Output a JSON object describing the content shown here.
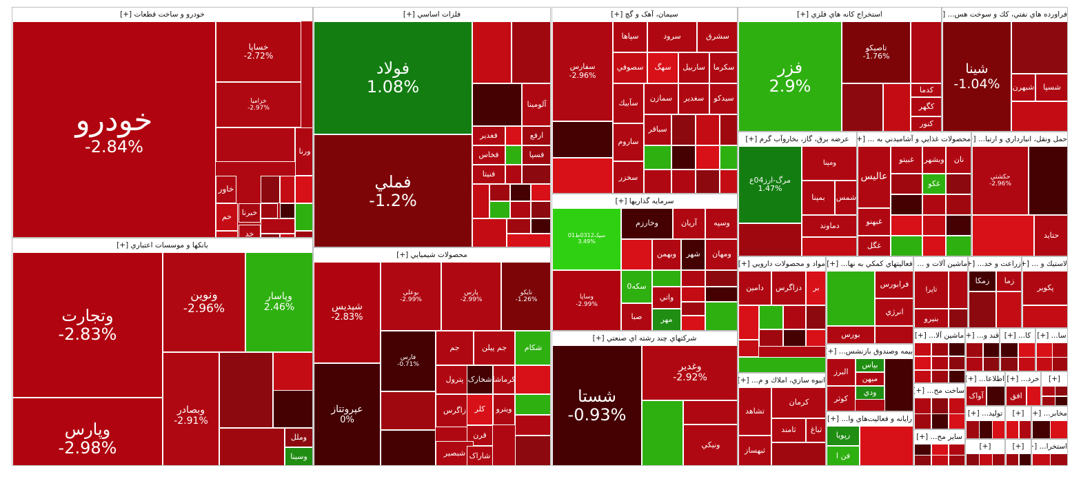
{
  "sectors": [
    {
      "id": "auto",
      "title": "خودرو و ساخت قطعات [+]",
      "tiles": [
        {
          "symbol": "خودرو",
          "change": "-2.84%",
          "color": "#b00510"
        },
        {
          "symbol": "خساپا",
          "change": "-2.72%",
          "color": "#ae0710"
        },
        {
          "symbol": "خزامیا",
          "change": "-2.97%",
          "color": "#b00812"
        },
        {
          "symbol": "ورنا",
          "change": "",
          "color": "#b00812"
        },
        {
          "symbol": "خاور",
          "change": "",
          "color": "#b00812"
        },
        {
          "symbol": "خبرنا",
          "change": "",
          "color": "#a80810"
        },
        {
          "symbol": "خم",
          "change": "",
          "color": "#c40c14"
        },
        {
          "symbol": "خم",
          "change": "",
          "color": "#c40c14"
        },
        {
          "symbol": "خد",
          "change": "",
          "color": "#b00812"
        }
      ]
    },
    {
      "id": "banks",
      "title": "بانکها و موسسات اعتباري [+]",
      "tiles": [
        {
          "symbol": "وتجارت",
          "change": "-2.83%",
          "color": "#b00510"
        },
        {
          "symbol": "وپارس",
          "change": "-2.98%",
          "color": "#b00510"
        },
        {
          "symbol": "ونوين",
          "change": "-2.96%",
          "color": "#b00812"
        },
        {
          "symbol": "وپاسار",
          "change": "2.46%",
          "color": "#2fb011"
        },
        {
          "symbol": "وبصادر",
          "change": "-2.91%",
          "color": "#b00812"
        },
        {
          "symbol": "وملل",
          "change": "",
          "color": "#8c0a0f"
        },
        {
          "symbol": "وسينا",
          "change": "",
          "color": "#1f8e12"
        }
      ]
    },
    {
      "id": "metals",
      "title": "فلزات اساسي [+]",
      "tiles": [
        {
          "symbol": "فولاد",
          "change": "1.08%",
          "color": "#137d12"
        },
        {
          "symbol": "فملي",
          "change": "-1.2%",
          "color": "#7d0508"
        },
        {
          "symbol": "آلومينا",
          "change": "",
          "color": "#b00812"
        },
        {
          "symbol": "فغدير",
          "change": "",
          "color": "#b00812"
        },
        {
          "symbol": "ارفع",
          "change": "",
          "color": "#a00810"
        },
        {
          "symbol": "فخاس",
          "change": "",
          "color": "#b00812"
        },
        {
          "symbol": "فسپا",
          "change": "",
          "color": "#a00810"
        },
        {
          "symbol": "فنيتا",
          "change": "",
          "color": "#b00812"
        }
      ]
    },
    {
      "id": "chem",
      "title": "محصولات شيميايي [+]",
      "tiles": [
        {
          "symbol": "شپديس",
          "change": "-2.83%",
          "color": "#b00510"
        },
        {
          "symbol": "بوعلي",
          "change": "-2.99%",
          "color": "#b00812"
        },
        {
          "symbol": "پارس",
          "change": "-2.99%",
          "color": "#b00812"
        },
        {
          "symbol": "نايکو",
          "change": "-1.26%",
          "color": "#7d0508"
        },
        {
          "symbol": "عپروتتاز",
          "change": "0%",
          "color": "#450002"
        },
        {
          "symbol": "فارس",
          "change": "-0.71%",
          "color": "#450002"
        },
        {
          "symbol": "جم",
          "change": "",
          "color": "#b00812"
        },
        {
          "symbol": "جم پيلن",
          "change": "",
          "color": "#b00812"
        },
        {
          "symbol": "شکام",
          "change": "",
          "color": "#2fb011"
        },
        {
          "symbol": "پترول",
          "change": "",
          "color": "#b00812"
        },
        {
          "symbol": "شخارک",
          "change": "",
          "color": "#450002"
        },
        {
          "symbol": "کرماشا",
          "change": "",
          "color": "#b00812"
        },
        {
          "symbol": "زاگرس",
          "change": "",
          "color": "#b00812"
        },
        {
          "symbol": "کلر",
          "change": "",
          "color": "#d81018"
        },
        {
          "symbol": "ويترو",
          "change": "",
          "color": "#b00812"
        },
        {
          "symbol": "قرن",
          "change": "",
          "color": "#b00812"
        },
        {
          "symbol": "شبصير",
          "change": "",
          "color": "#b00812"
        },
        {
          "symbol": "شاراک",
          "change": "",
          "color": "#b00812"
        }
      ]
    },
    {
      "id": "cement",
      "title": "سيمان، آهک و گچ [+]",
      "tiles": [
        {
          "symbol": "سفارس",
          "change": "-2.96%",
          "color": "#b00812"
        },
        {
          "symbol": "سپاها",
          "change": "",
          "color": "#b00812"
        },
        {
          "symbol": "سرود",
          "change": "",
          "color": "#b00812"
        },
        {
          "symbol": "سشرق",
          "change": "",
          "color": "#b00812"
        },
        {
          "symbol": "سهگ",
          "change": "",
          "color": "#d81018"
        },
        {
          "symbol": "ساربيل",
          "change": "",
          "color": "#b00812"
        },
        {
          "symbol": "سكرما",
          "change": "",
          "color": "#b00812"
        },
        {
          "symbol": "سصوفي",
          "change": "",
          "color": "#c40c14"
        },
        {
          "symbol": "سآبيك",
          "change": "",
          "color": "#b00812"
        },
        {
          "symbol": "سمازن",
          "change": "",
          "color": "#b00812"
        },
        {
          "symbol": "سغدير",
          "change": "",
          "color": "#b00812"
        },
        {
          "symbol": "سيدكو",
          "change": "",
          "color": "#b00812"
        },
        {
          "symbol": "ساروم",
          "change": "",
          "color": "#b00812"
        },
        {
          "symbol": "سباقر",
          "change": "",
          "color": "#b00812"
        },
        {
          "symbol": "سخزر",
          "change": "",
          "color": "#b00812"
        }
      ]
    },
    {
      "id": "invest",
      "title": "سرمايه گذاريها [+]",
      "tiles": [
        {
          "symbol": "سپک0312ط01",
          "change": "3.49%",
          "color": "#2fd011"
        },
        {
          "symbol": "وخارزم",
          "change": "",
          "color": "#450002"
        },
        {
          "symbol": "آريان",
          "change": "",
          "color": "#b00812"
        },
        {
          "symbol": "وسپه",
          "change": "",
          "color": "#b00812"
        },
        {
          "symbol": "وبهمن",
          "change": "",
          "color": "#b00812"
        },
        {
          "symbol": "شهر",
          "change": "",
          "color": "#450002"
        },
        {
          "symbol": "ومهان",
          "change": "",
          "color": "#b00812"
        },
        {
          "symbol": "وساپا",
          "change": "-2.99%",
          "color": "#b00510"
        },
        {
          "symbol": "سکه0",
          "change": "",
          "color": "#2fb011"
        },
        {
          "symbol": "واتي",
          "change": "",
          "color": "#b00812"
        },
        {
          "symbol": "صبا",
          "change": "",
          "color": "#b00812"
        },
        {
          "symbol": "مهر",
          "change": "",
          "color": "#1f8e12"
        }
      ]
    },
    {
      "id": "multi",
      "title": "شرکتهاي چند رشته اي صنعتي [+]",
      "tiles": [
        {
          "symbol": "شستا",
          "change": "-0.93%",
          "color": "#450002"
        },
        {
          "symbol": "وغدير",
          "change": "-2.92%",
          "color": "#b00812"
        },
        {
          "symbol": "ونيكي",
          "change": "",
          "color": "#b00812"
        }
      ]
    },
    {
      "id": "mining",
      "title": "استخراج كانه هاي فلزي [+]",
      "tiles": [
        {
          "symbol": "فزر",
          "change": "2.9%",
          "color": "#2fb011"
        },
        {
          "symbol": "تاصيكو",
          "change": "-1.76%",
          "color": "#7d0508"
        },
        {
          "symbol": "كگهر",
          "change": "",
          "color": "#b00812"
        },
        {
          "symbol": "كدما",
          "change": "",
          "color": "#b00812"
        },
        {
          "symbol": "كنور",
          "change": "",
          "color": "#b00812"
        }
      ]
    },
    {
      "id": "oil",
      "title": "فراورده هاي نفتي، كك و سوخت هس... [+]",
      "tiles": [
        {
          "symbol": "شينا",
          "change": "-1.04%",
          "color": "#7d0508"
        },
        {
          "symbol": "شبهرن",
          "change": "",
          "color": "#b00812"
        },
        {
          "symbol": "شسپا",
          "change": "",
          "color": "#b00812"
        }
      ]
    },
    {
      "id": "power",
      "title": "عرضه برق، گاز، بخاروآب گرم [+]",
      "tiles": [
        {
          "symbol": "مرگ-ارز04ع",
          "change": "1.47%",
          "color": "#137d12"
        },
        {
          "symbol": "ومپنا",
          "change": "",
          "color": "#b00812"
        },
        {
          "symbol": "بمپنا",
          "change": "",
          "color": "#b00812"
        },
        {
          "symbol": "شمس",
          "change": "",
          "color": "#b00812"
        },
        {
          "symbol": "دماوند",
          "change": "",
          "color": "#b00812"
        }
      ]
    },
    {
      "id": "food",
      "title": "محصولات غذايي و آشاميدني به ... [+]",
      "tiles": [
        {
          "symbol": "عاليس",
          "change": "",
          "color": "#b00812"
        },
        {
          "symbol": "غبيتو",
          "change": "",
          "color": "#b00812"
        },
        {
          "symbol": "وبشهر",
          "change": "",
          "color": "#b00812"
        },
        {
          "symbol": "نان",
          "change": "",
          "color": "#b00812"
        },
        {
          "symbol": "غكو",
          "change": "",
          "color": "#2fb011"
        },
        {
          "symbol": "غبهنو",
          "change": "",
          "color": "#b00812"
        },
        {
          "symbol": "غگل",
          "change": "",
          "color": "#b00812"
        }
      ]
    },
    {
      "id": "transport",
      "title": "حمل ونقل، انبارداري و ارتبا... [+]",
      "tiles": [
        {
          "symbol": "حكشتي",
          "change": "-2.96%",
          "color": "#b00812"
        },
        {
          "symbol": "حتايد",
          "change": "",
          "color": "#b00812"
        }
      ]
    },
    {
      "id": "pharma",
      "title": "مواد و محصولات دارويي [+]",
      "tiles": [
        {
          "symbol": "دامين",
          "change": "",
          "color": "#b00812"
        },
        {
          "symbol": "دزاگرس",
          "change": "",
          "color": "#b00812"
        },
        {
          "symbol": "بر",
          "change": "",
          "color": "#d81018"
        }
      ]
    },
    {
      "id": "aux",
      "title": "فعاليتهاي كمكي به نها... [+]",
      "tiles": [
        {
          "symbol": "فرابورس",
          "change": "",
          "color": "#b00812"
        },
        {
          "symbol": "انرژي",
          "change": "",
          "color": "#b00812"
        },
        {
          "symbol": "بورس",
          "change": "",
          "color": "#b00812"
        }
      ]
    },
    {
      "id": "machines",
      "title": "ماشين آلات و ... [+]",
      "tiles": [
        {
          "symbol": "بنيرو",
          "change": "",
          "color": "#b00812"
        },
        {
          "symbol": "تاپرا",
          "change": "",
          "color": "#b00812"
        }
      ]
    },
    {
      "id": "agri",
      "title": "زراعت و خد... [+]",
      "tiles": [
        {
          "symbol": "زمكا",
          "change": "",
          "color": "#450002"
        },
        {
          "symbol": "زما",
          "change": "",
          "color": "#b00812"
        }
      ]
    },
    {
      "id": "tire",
      "title": "لاستيك و ... [+]",
      "tiles": [
        {
          "symbol": "پكوير",
          "change": "",
          "color": "#b00812"
        }
      ]
    },
    {
      "id": "realestate",
      "title": "انبوه سازي، املاك و م... [+]",
      "tiles": [
        {
          "symbol": "كرمان",
          "change": "",
          "color": "#b00812"
        },
        {
          "symbol": "تشاهد",
          "change": "",
          "color": "#b00812"
        },
        {
          "symbol": "ثامند",
          "change": "",
          "color": "#b00812"
        },
        {
          "symbol": "ثباغ",
          "change": "",
          "color": "#b00812"
        },
        {
          "symbol": "ثبهساز",
          "change": "",
          "color": "#b00812"
        }
      ]
    },
    {
      "id": "insurance",
      "title": "بيمه وصندوق بازنشس... [+]",
      "tiles": [
        {
          "symbol": "البرز",
          "change": "",
          "color": "#b00812"
        },
        {
          "symbol": "بپاس",
          "change": "",
          "color": "#1f8e12"
        },
        {
          "symbol": "ميهن",
          "change": "",
          "color": "#b00812"
        },
        {
          "symbol": "كوثر",
          "change": "",
          "color": "#b00812"
        },
        {
          "symbol": "ودي",
          "change": "",
          "color": "#1f8e12"
        }
      ]
    },
    {
      "id": "computer",
      "title": "رايانه و فعاليت‌هاي وا... [+]",
      "tiles": [
        {
          "symbol": "رپويا",
          "change": "",
          "color": "#1f8e12"
        },
        {
          "symbol": "فن ا",
          "change": "",
          "color": "#2fb011"
        }
      ]
    },
    {
      "id": "machines2",
      "title": "ماشين آلا... [+]",
      "tiles": []
    },
    {
      "id": "sugar",
      "title": "قند و... [+]",
      "tiles": []
    },
    {
      "id": "kashi",
      "title": "كا... [+]",
      "tiles": []
    },
    {
      "id": "tra",
      "title": "سا... [+]",
      "tiles": []
    },
    {
      "id": "other",
      "title": "ساخت مح... [+]",
      "tiles": []
    },
    {
      "id": "info",
      "title": "اطلاعا... [+]",
      "tiles": [
        {
          "symbol": "آواک",
          "change": "",
          "color": "#b00812"
        }
      ]
    },
    {
      "id": "kharid",
      "title": "خرد... [+]",
      "tiles": [
        {
          "symbol": "افق",
          "change": "",
          "color": "#b00812"
        }
      ]
    },
    {
      "id": "wood",
      "title": "توليد... [+]",
      "tiles": []
    },
    {
      "id": "comm",
      "title": "مخابر... [+]",
      "tiles": []
    },
    {
      "id": "s1",
      "title": "[+]",
      "tiles": []
    },
    {
      "id": "s2",
      "title": "[+]",
      "tiles": []
    },
    {
      "id": "s3",
      "title": "[+]",
      "tiles": []
    },
    {
      "id": "s4",
      "title": "استخرا... [+]",
      "tiles": []
    },
    {
      "id": "s5",
      "title": "[+]",
      "tiles": []
    },
    {
      "id": "s6",
      "title": "ساير مح... [+]",
      "tiles": []
    },
    {
      "id": "s7",
      "title": "[+]",
      "tiles": []
    }
  ]
}
